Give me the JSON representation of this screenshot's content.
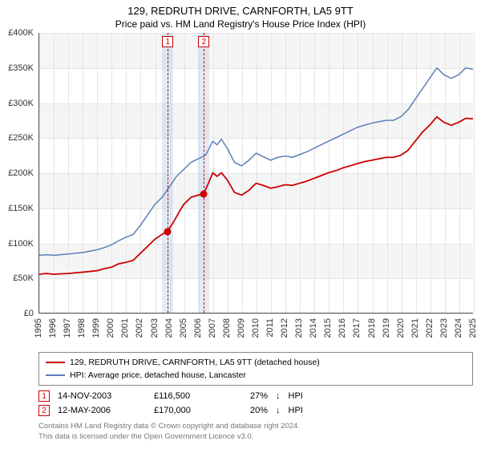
{
  "title": "129, REDRUTH DRIVE, CARNFORTH, LA5 9TT",
  "subtitle": "Price paid vs. HM Land Registry's House Price Index (HPI)",
  "chart": {
    "type": "line",
    "background_color": "#ffffff",
    "band_color": "#f5f5f5",
    "grid_color": "#e5e5e5",
    "y": {
      "min": 0,
      "max": 400000,
      "step": 50000,
      "tick_labels": [
        "£0",
        "£50K",
        "£100K",
        "£150K",
        "£200K",
        "£250K",
        "£300K",
        "£350K",
        "£400K"
      ],
      "label_fontsize": 11
    },
    "x": {
      "min": 1995,
      "max": 2025,
      "step": 1,
      "tick_labels": [
        "1995",
        "1996",
        "1997",
        "1998",
        "1999",
        "2000",
        "2001",
        "2002",
        "2003",
        "2004",
        "2005",
        "2006",
        "2007",
        "2008",
        "2009",
        "2010",
        "2011",
        "2012",
        "2013",
        "2014",
        "2015",
        "2016",
        "2017",
        "2018",
        "2019",
        "2020",
        "2021",
        "2022",
        "2023",
        "2024",
        "2025"
      ],
      "label_fontsize": 11,
      "rotation": -90
    },
    "sale_band_color": "rgba(173,200,230,0.35)",
    "sale_line_color": "#cc0000",
    "series": [
      {
        "name": "property",
        "legend": "129, REDRUTH DRIVE, CARNFORTH, LA5 9TT (detached house)",
        "color": "#cc0000",
        "line_width": 1.8,
        "data": [
          [
            1995.0,
            55000
          ],
          [
            1995.5,
            56000
          ],
          [
            1996.0,
            55000
          ],
          [
            1996.5,
            55500
          ],
          [
            1997.0,
            56000
          ],
          [
            1997.5,
            57000
          ],
          [
            1998.0,
            58000
          ],
          [
            1998.5,
            59000
          ],
          [
            1999.0,
            60000
          ],
          [
            1999.5,
            63000
          ],
          [
            2000.0,
            65000
          ],
          [
            2000.5,
            70000
          ],
          [
            2001.0,
            72000
          ],
          [
            2001.5,
            75000
          ],
          [
            2002.0,
            85000
          ],
          [
            2002.5,
            95000
          ],
          [
            2003.0,
            105000
          ],
          [
            2003.5,
            112000
          ],
          [
            2003.87,
            116500
          ],
          [
            2004.3,
            130000
          ],
          [
            2004.7,
            145000
          ],
          [
            2005.0,
            155000
          ],
          [
            2005.5,
            165000
          ],
          [
            2006.0,
            168000
          ],
          [
            2006.37,
            170000
          ],
          [
            2006.7,
            185000
          ],
          [
            2007.0,
            200000
          ],
          [
            2007.3,
            195000
          ],
          [
            2007.6,
            200000
          ],
          [
            2008.0,
            190000
          ],
          [
            2008.5,
            172000
          ],
          [
            2009.0,
            168000
          ],
          [
            2009.5,
            175000
          ],
          [
            2010.0,
            185000
          ],
          [
            2010.5,
            182000
          ],
          [
            2011.0,
            178000
          ],
          [
            2011.5,
            180000
          ],
          [
            2012.0,
            183000
          ],
          [
            2012.5,
            182000
          ],
          [
            2013.0,
            185000
          ],
          [
            2013.5,
            188000
          ],
          [
            2014.0,
            192000
          ],
          [
            2014.5,
            196000
          ],
          [
            2015.0,
            200000
          ],
          [
            2015.5,
            203000
          ],
          [
            2016.0,
            207000
          ],
          [
            2016.5,
            210000
          ],
          [
            2017.0,
            213000
          ],
          [
            2017.5,
            216000
          ],
          [
            2018.0,
            218000
          ],
          [
            2018.5,
            220000
          ],
          [
            2019.0,
            222000
          ],
          [
            2019.5,
            222000
          ],
          [
            2020.0,
            225000
          ],
          [
            2020.5,
            232000
          ],
          [
            2021.0,
            245000
          ],
          [
            2021.5,
            258000
          ],
          [
            2022.0,
            268000
          ],
          [
            2022.5,
            280000
          ],
          [
            2023.0,
            272000
          ],
          [
            2023.5,
            268000
          ],
          [
            2024.0,
            272000
          ],
          [
            2024.5,
            278000
          ],
          [
            2025.0,
            277000
          ]
        ]
      },
      {
        "name": "hpi",
        "legend": "HPI: Average price, detached house, Lancaster",
        "color": "#5a7fb8",
        "line_width": 1.5,
        "data": [
          [
            1995.0,
            82000
          ],
          [
            1995.5,
            83000
          ],
          [
            1996.0,
            82000
          ],
          [
            1996.5,
            83000
          ],
          [
            1997.0,
            84000
          ],
          [
            1997.5,
            85000
          ],
          [
            1998.0,
            86000
          ],
          [
            1998.5,
            88000
          ],
          [
            1999.0,
            90000
          ],
          [
            1999.5,
            93000
          ],
          [
            2000.0,
            97000
          ],
          [
            2000.5,
            103000
          ],
          [
            2001.0,
            108000
          ],
          [
            2001.5,
            112000
          ],
          [
            2002.0,
            125000
          ],
          [
            2002.5,
            140000
          ],
          [
            2003.0,
            155000
          ],
          [
            2003.5,
            165000
          ],
          [
            2004.0,
            180000
          ],
          [
            2004.5,
            195000
          ],
          [
            2005.0,
            205000
          ],
          [
            2005.5,
            215000
          ],
          [
            2006.0,
            220000
          ],
          [
            2006.5,
            225000
          ],
          [
            2007.0,
            245000
          ],
          [
            2007.3,
            240000
          ],
          [
            2007.6,
            248000
          ],
          [
            2008.0,
            235000
          ],
          [
            2008.5,
            215000
          ],
          [
            2009.0,
            210000
          ],
          [
            2009.5,
            218000
          ],
          [
            2010.0,
            228000
          ],
          [
            2010.5,
            223000
          ],
          [
            2011.0,
            218000
          ],
          [
            2011.5,
            222000
          ],
          [
            2012.0,
            224000
          ],
          [
            2012.5,
            222000
          ],
          [
            2013.0,
            226000
          ],
          [
            2013.5,
            230000
          ],
          [
            2014.0,
            235000
          ],
          [
            2014.5,
            240000
          ],
          [
            2015.0,
            245000
          ],
          [
            2015.5,
            250000
          ],
          [
            2016.0,
            255000
          ],
          [
            2016.5,
            260000
          ],
          [
            2017.0,
            265000
          ],
          [
            2017.5,
            268000
          ],
          [
            2018.0,
            271000
          ],
          [
            2018.5,
            273000
          ],
          [
            2019.0,
            275000
          ],
          [
            2019.5,
            275000
          ],
          [
            2020.0,
            280000
          ],
          [
            2020.5,
            290000
          ],
          [
            2021.0,
            305000
          ],
          [
            2021.5,
            320000
          ],
          [
            2022.0,
            335000
          ],
          [
            2022.5,
            350000
          ],
          [
            2023.0,
            340000
          ],
          [
            2023.5,
            335000
          ],
          [
            2024.0,
            340000
          ],
          [
            2024.5,
            350000
          ],
          [
            2025.0,
            348000
          ]
        ]
      }
    ],
    "sales": [
      {
        "idx": "1",
        "x": 2003.87,
        "price": 116500,
        "date": "14-NOV-2003",
        "price_label": "£116,500",
        "pct": "27%",
        "arrow": "↓",
        "vs": "HPI"
      },
      {
        "idx": "2",
        "x": 2006.37,
        "price": 170000,
        "date": "12-MAY-2006",
        "price_label": "£170,000",
        "pct": "20%",
        "arrow": "↓",
        "vs": "HPI"
      }
    ]
  },
  "footer": {
    "line1": "Contains HM Land Registry data © Crown copyright and database right 2024.",
    "line2": "This data is licensed under the Open Government Licence v3.0."
  }
}
